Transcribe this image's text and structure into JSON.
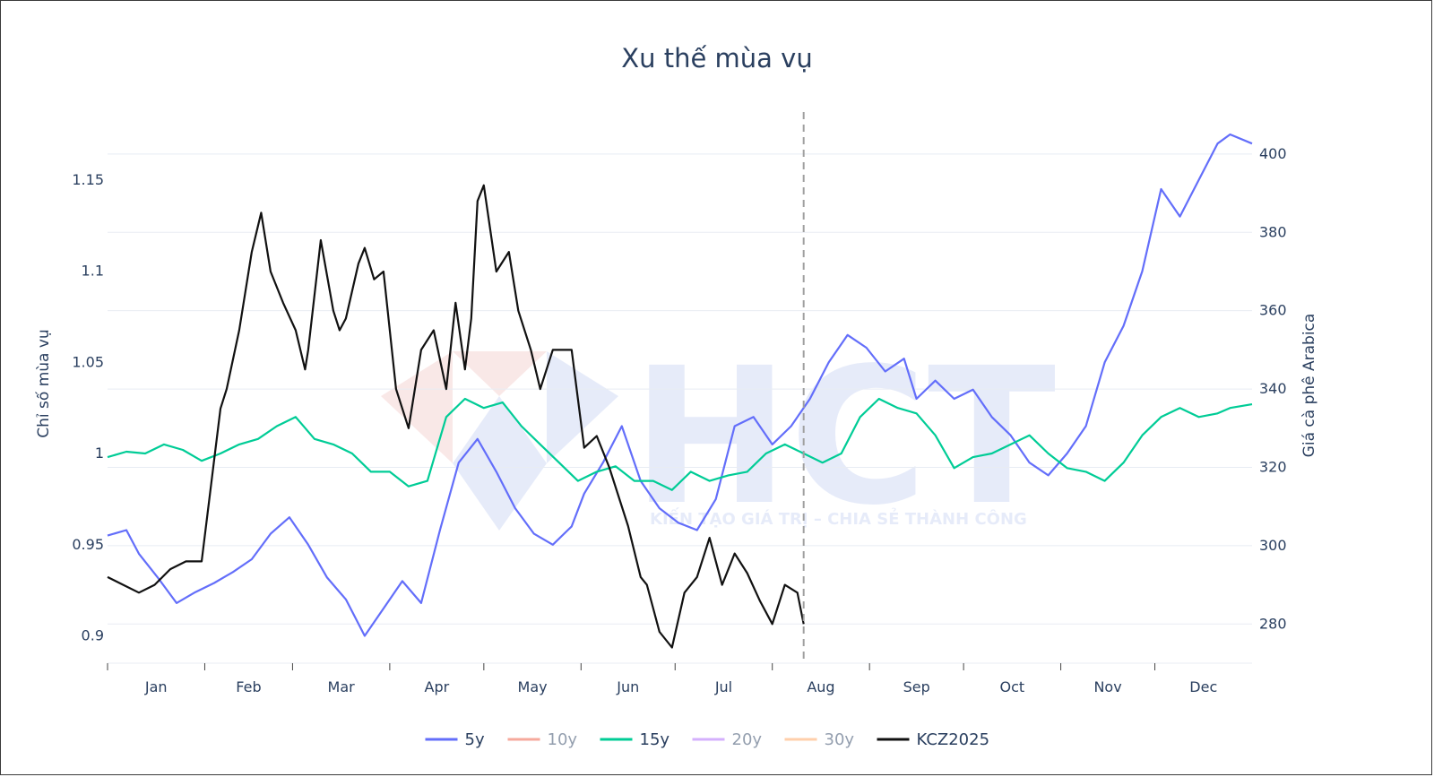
{
  "chart_data": {
    "type": "line",
    "title": "Xu thế mùa vụ",
    "yaxis_left": {
      "label": "Chỉ số mùa vụ",
      "range": [
        0.885,
        1.175
      ],
      "ticks": [
        0.9,
        0.95,
        1,
        1.05,
        1.1,
        1.15
      ],
      "tick_labels": [
        "0.9",
        "0.95",
        "1",
        "1.05",
        "1.1",
        "1.15"
      ]
    },
    "yaxis_right": {
      "label": "Giá cà phê Arabica",
      "range": [
        270,
        405
      ],
      "ticks": [
        280,
        300,
        320,
        340,
        360,
        380,
        400
      ],
      "tick_labels": [
        "280",
        "300",
        "320",
        "340",
        "360",
        "380",
        "400"
      ]
    },
    "xaxis": {
      "range": [
        0,
        365
      ],
      "month_labels": [
        "Jan",
        "Feb",
        "Mar",
        "Apr",
        "May",
        "Jun",
        "Jul",
        "Aug",
        "Sep",
        "Oct",
        "Nov",
        "Dec"
      ]
    },
    "today_marker_day": 222,
    "legend_position": "bottom",
    "watermark": {
      "text": "HCT",
      "subtext": "KIẾN TẠO GIÁ TRỊ – CHIA SẺ THÀNH CÔNG"
    },
    "series": [
      {
        "name": "5y",
        "color": "#636efa",
        "visible": true,
        "axis": "left",
        "x": [
          0,
          6,
          10,
          16,
          22,
          28,
          34,
          40,
          46,
          52,
          58,
          64,
          70,
          76,
          82,
          88,
          94,
          100,
          106,
          112,
          118,
          124,
          130,
          136,
          142,
          148,
          152,
          158,
          164,
          170,
          176,
          182,
          188,
          194,
          200,
          206,
          212,
          218,
          224,
          230,
          236,
          242,
          248,
          254,
          258,
          264,
          270,
          276,
          282,
          288,
          294,
          300,
          306,
          312,
          318,
          324,
          330,
          336,
          342,
          348,
          354,
          358,
          365
        ],
        "y": [
          0.955,
          0.958,
          0.945,
          0.932,
          0.918,
          0.924,
          0.929,
          0.935,
          0.942,
          0.956,
          0.965,
          0.95,
          0.932,
          0.92,
          0.9,
          0.915,
          0.93,
          0.918,
          0.958,
          0.995,
          1.008,
          0.99,
          0.97,
          0.956,
          0.95,
          0.96,
          0.978,
          0.995,
          1.015,
          0.985,
          0.97,
          0.962,
          0.958,
          0.975,
          1.015,
          1.02,
          1.005,
          1.015,
          1.03,
          1.05,
          1.065,
          1.058,
          1.045,
          1.052,
          1.03,
          1.04,
          1.03,
          1.035,
          1.02,
          1.01,
          0.995,
          0.988,
          1.0,
          1.015,
          1.05,
          1.07,
          1.1,
          1.145,
          1.13,
          1.15,
          1.17,
          1.175,
          1.17
        ]
      },
      {
        "name": "10y",
        "color": "#ef553b",
        "visible": false,
        "axis": "left",
        "x": [],
        "y": []
      },
      {
        "name": "15y",
        "color": "#00cc96",
        "visible": true,
        "axis": "left",
        "x": [
          0,
          6,
          12,
          18,
          24,
          30,
          36,
          42,
          48,
          54,
          60,
          66,
          72,
          78,
          84,
          90,
          96,
          102,
          108,
          114,
          120,
          126,
          132,
          138,
          144,
          150,
          156,
          162,
          168,
          174,
          180,
          186,
          192,
          198,
          204,
          210,
          216,
          222,
          228,
          234,
          240,
          246,
          252,
          258,
          264,
          270,
          276,
          282,
          288,
          294,
          300,
          306,
          312,
          318,
          324,
          330,
          336,
          342,
          348,
          354,
          358,
          365
        ],
        "y": [
          0.998,
          1.001,
          1.0,
          1.005,
          1.002,
          0.996,
          1.0,
          1.005,
          1.008,
          1.015,
          1.02,
          1.008,
          1.005,
          1.0,
          0.99,
          0.99,
          0.982,
          0.985,
          1.02,
          1.03,
          1.025,
          1.028,
          1.015,
          1.005,
          0.995,
          0.985,
          0.99,
          0.993,
          0.985,
          0.985,
          0.98,
          0.99,
          0.985,
          0.988,
          0.99,
          1.0,
          1.005,
          1.0,
          0.995,
          1.0,
          1.02,
          1.03,
          1.025,
          1.022,
          1.01,
          0.992,
          0.998,
          1.0,
          1.005,
          1.01,
          1.0,
          0.992,
          0.99,
          0.985,
          0.995,
          1.01,
          1.02,
          1.025,
          1.02,
          1.022,
          1.025,
          1.027
        ]
      },
      {
        "name": "20y",
        "color": "#ab63fa",
        "visible": false,
        "axis": "left",
        "x": [],
        "y": []
      },
      {
        "name": "30y",
        "color": "#ffa15a",
        "visible": false,
        "axis": "left",
        "x": [],
        "y": []
      },
      {
        "name": "KCZ2025",
        "color": "#111111",
        "visible": true,
        "axis": "right",
        "x": [
          0,
          5,
          10,
          15,
          20,
          25,
          28,
          30,
          36,
          38,
          42,
          46,
          49,
          52,
          56,
          60,
          63,
          64,
          68,
          72,
          74,
          76,
          78,
          80,
          82,
          85,
          88,
          92,
          96,
          100,
          104,
          108,
          111,
          114,
          116,
          118,
          120,
          124,
          128,
          131,
          135,
          138,
          142,
          148,
          152,
          156,
          160,
          166,
          170,
          172,
          176,
          180,
          184,
          188,
          192,
          196,
          200,
          204,
          208,
          212,
          216,
          220,
          222
        ],
        "y": [
          292,
          290,
          288,
          290,
          294,
          296,
          296,
          296,
          335,
          340,
          355,
          375,
          385,
          370,
          362,
          355,
          345,
          350,
          378,
          360,
          355,
          358,
          365,
          372,
          376,
          368,
          370,
          340,
          330,
          350,
          355,
          340,
          362,
          345,
          358,
          388,
          392,
          370,
          375,
          360,
          350,
          340,
          350,
          350,
          325,
          328,
          320,
          305,
          292,
          290,
          278,
          274,
          288,
          292,
          302,
          290,
          298,
          293,
          286,
          280,
          290,
          288,
          280
        ]
      }
    ]
  }
}
